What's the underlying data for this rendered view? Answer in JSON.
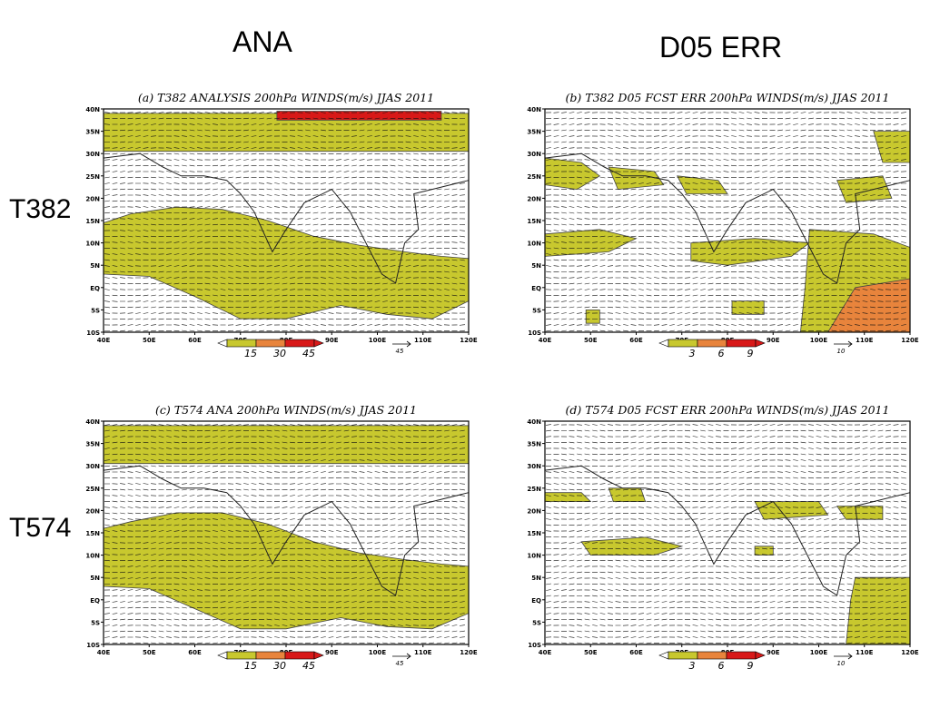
{
  "columns": {
    "left": "ANA",
    "right": "D05 ERR"
  },
  "rows": {
    "top": "T382",
    "bottom": "T574"
  },
  "colors": {
    "yellow": "#c8c82e",
    "orange": "#e8843c",
    "red": "#d81818",
    "fill_white": "#ffffff"
  },
  "chart_data": [
    {
      "type": "heatmap",
      "title": "(a) T382 ANALYSIS 200hPa WINDS(m/s) JJAS 2011",
      "x_ticks": [
        "40E",
        "50E",
        "60E",
        "70E",
        "80E",
        "90E",
        "100E",
        "110E",
        "120E"
      ],
      "y_ticks": [
        "40N",
        "35N",
        "30N",
        "25N",
        "20N",
        "15N",
        "10N",
        "5N",
        "EQ",
        "5S",
        "10S"
      ],
      "xlim": [
        40,
        120
      ],
      "ylim": [
        -10,
        40
      ],
      "color_levels": [
        15,
        30,
        45
      ],
      "level_labels": [
        "15",
        "30",
        "45"
      ],
      "reference_vector": "45",
      "shaded_regions": [
        {
          "level": 15,
          "points": [
            [
              40,
              39
            ],
            [
              120,
              39
            ],
            [
              120,
              30.5
            ],
            [
              40,
              30.5
            ]
          ]
        },
        {
          "level": 45,
          "points": [
            [
              78,
              39.5
            ],
            [
              114,
              39.5
            ],
            [
              114,
              37.5
            ],
            [
              78,
              37.5
            ]
          ]
        },
        {
          "level": 15,
          "points": [
            [
              40,
              14.5
            ],
            [
              46,
              16.5
            ],
            [
              56,
              18
            ],
            [
              66,
              17.5
            ],
            [
              76,
              15
            ],
            [
              86,
              11.5
            ],
            [
              96,
              9.5
            ],
            [
              106,
              8
            ],
            [
              114,
              7
            ],
            [
              120,
              6.5
            ],
            [
              120,
              -3
            ],
            [
              112,
              -7
            ],
            [
              102,
              -6
            ],
            [
              92,
              -4
            ],
            [
              80,
              -7
            ],
            [
              70,
              -7
            ],
            [
              60,
              -2
            ],
            [
              50,
              2.5
            ],
            [
              40,
              3
            ]
          ]
        }
      ]
    },
    {
      "type": "heatmap",
      "title": "(b) T382 D05 FCST ERR 200hPa WINDS(m/s) JJAS 2011",
      "x_ticks": [
        "40E",
        "50E",
        "60E",
        "70E",
        "80E",
        "90E",
        "100E",
        "110E",
        "120E"
      ],
      "y_ticks": [
        "40N",
        "35N",
        "30N",
        "25N",
        "20N",
        "15N",
        "10N",
        "5N",
        "EQ",
        "5S",
        "10S"
      ],
      "xlim": [
        40,
        120
      ],
      "ylim": [
        -10,
        40
      ],
      "color_levels": [
        3,
        6,
        9
      ],
      "level_labels": [
        "3",
        "6",
        "9"
      ],
      "reference_vector": "10",
      "shaded_regions": [
        {
          "level": 3,
          "points": [
            [
              40,
              29
            ],
            [
              48,
              28
            ],
            [
              52,
              25
            ],
            [
              47,
              22
            ],
            [
              40,
              23
            ]
          ]
        },
        {
          "level": 3,
          "points": [
            [
              54,
              27
            ],
            [
              64,
              26
            ],
            [
              66,
              23
            ],
            [
              56,
              22
            ]
          ]
        },
        {
          "level": 3,
          "points": [
            [
              69,
              25
            ],
            [
              78,
              24
            ],
            [
              80,
              21
            ],
            [
              71,
              21
            ]
          ]
        },
        {
          "level": 3,
          "points": [
            [
              112,
              35
            ],
            [
              120,
              35
            ],
            [
              120,
              28
            ],
            [
              114,
              28
            ]
          ]
        },
        {
          "level": 3,
          "points": [
            [
              104,
              24
            ],
            [
              114,
              25
            ],
            [
              116,
              20
            ],
            [
              106,
              19
            ]
          ]
        },
        {
          "level": 3,
          "points": [
            [
              40,
              12
            ],
            [
              52,
              13
            ],
            [
              60,
              11
            ],
            [
              54,
              8
            ],
            [
              40,
              7
            ]
          ]
        },
        {
          "level": 3,
          "points": [
            [
              72,
              10
            ],
            [
              86,
              11
            ],
            [
              98,
              10
            ],
            [
              94,
              7
            ],
            [
              80,
              5
            ],
            [
              72,
              6
            ]
          ]
        },
        {
          "level": 3,
          "points": [
            [
              98,
              13
            ],
            [
              112,
              12
            ],
            [
              120,
              9
            ],
            [
              120,
              -10
            ],
            [
              96,
              -10
            ],
            [
              97,
              0
            ]
          ]
        },
        {
          "level": 6,
          "points": [
            [
              108,
              0
            ],
            [
              120,
              2
            ],
            [
              120,
              -10
            ],
            [
              102,
              -10
            ]
          ]
        },
        {
          "level": 3,
          "points": [
            [
              49,
              -5
            ],
            [
              52,
              -5
            ],
            [
              52,
              -8
            ],
            [
              49,
              -8
            ]
          ]
        },
        {
          "level": 3,
          "points": [
            [
              81,
              -3
            ],
            [
              88,
              -3
            ],
            [
              88,
              -6
            ],
            [
              81,
              -6
            ]
          ]
        }
      ]
    },
    {
      "type": "heatmap",
      "title": "(c) T574 ANA 200hPa WINDS(m/s) JJAS 2011",
      "x_ticks": [
        "40E",
        "50E",
        "60E",
        "70E",
        "80E",
        "90E",
        "100E",
        "110E",
        "120E"
      ],
      "y_ticks": [
        "40N",
        "35N",
        "30N",
        "25N",
        "20N",
        "15N",
        "10N",
        "5N",
        "EQ",
        "5S",
        "10S"
      ],
      "xlim": [
        40,
        120
      ],
      "ylim": [
        -10,
        40
      ],
      "color_levels": [
        15,
        30,
        45
      ],
      "level_labels": [
        "15",
        "30",
        "45"
      ],
      "reference_vector": "45",
      "shaded_regions": [
        {
          "level": 15,
          "points": [
            [
              40,
              39
            ],
            [
              120,
              39
            ],
            [
              120,
              30.5
            ],
            [
              40,
              30.5
            ]
          ]
        },
        {
          "level": 15,
          "points": [
            [
              40,
              16
            ],
            [
              46,
              17.5
            ],
            [
              56,
              19.5
            ],
            [
              66,
              19.5
            ],
            [
              76,
              17
            ],
            [
              86,
              13
            ],
            [
              96,
              10.5
            ],
            [
              106,
              9
            ],
            [
              114,
              8
            ],
            [
              120,
              7.5
            ],
            [
              120,
              -3
            ],
            [
              112,
              -6.5
            ],
            [
              102,
              -6
            ],
            [
              92,
              -4
            ],
            [
              80,
              -6.5
            ],
            [
              70,
              -6.5
            ],
            [
              60,
              -2
            ],
            [
              50,
              2.5
            ],
            [
              40,
              3
            ]
          ]
        }
      ]
    },
    {
      "type": "heatmap",
      "title": "(d) T574 D05 FCST ERR 200hPa WINDS(m/s) JJAS 2011",
      "x_ticks": [
        "40E",
        "50E",
        "60E",
        "70E",
        "80E",
        "90E",
        "100E",
        "110E",
        "120E"
      ],
      "y_ticks": [
        "40N",
        "35N",
        "30N",
        "25N",
        "20N",
        "15N",
        "10N",
        "5N",
        "EQ",
        "5S",
        "10S"
      ],
      "xlim": [
        40,
        120
      ],
      "ylim": [
        -10,
        40
      ],
      "color_levels": [
        3,
        6,
        9
      ],
      "level_labels": [
        "3",
        "6",
        "9"
      ],
      "reference_vector": "10",
      "shaded_regions": [
        {
          "level": 3,
          "points": [
            [
              40,
              24
            ],
            [
              48,
              24
            ],
            [
              50,
              22
            ],
            [
              40,
              22
            ]
          ]
        },
        {
          "level": 3,
          "points": [
            [
              54,
              25
            ],
            [
              61,
              25
            ],
            [
              62,
              22
            ],
            [
              55,
              22
            ]
          ]
        },
        {
          "level": 3,
          "points": [
            [
              86,
              22
            ],
            [
              100,
              22
            ],
            [
              102,
              19
            ],
            [
              88,
              18
            ]
          ]
        },
        {
          "level": 3,
          "points": [
            [
              104,
              21
            ],
            [
              114,
              21
            ],
            [
              114,
              18
            ],
            [
              106,
              18
            ]
          ]
        },
        {
          "level": 3,
          "points": [
            [
              48,
              13
            ],
            [
              62,
              14
            ],
            [
              70,
              12
            ],
            [
              64,
              10
            ],
            [
              50,
              10
            ]
          ]
        },
        {
          "level": 3,
          "points": [
            [
              86,
              12
            ],
            [
              90,
              12
            ],
            [
              90,
              10
            ],
            [
              86,
              10
            ]
          ]
        },
        {
          "level": 3,
          "points": [
            [
              108,
              5
            ],
            [
              120,
              5
            ],
            [
              120,
              -10
            ],
            [
              106,
              -10
            ],
            [
              107,
              0
            ]
          ]
        }
      ]
    }
  ]
}
